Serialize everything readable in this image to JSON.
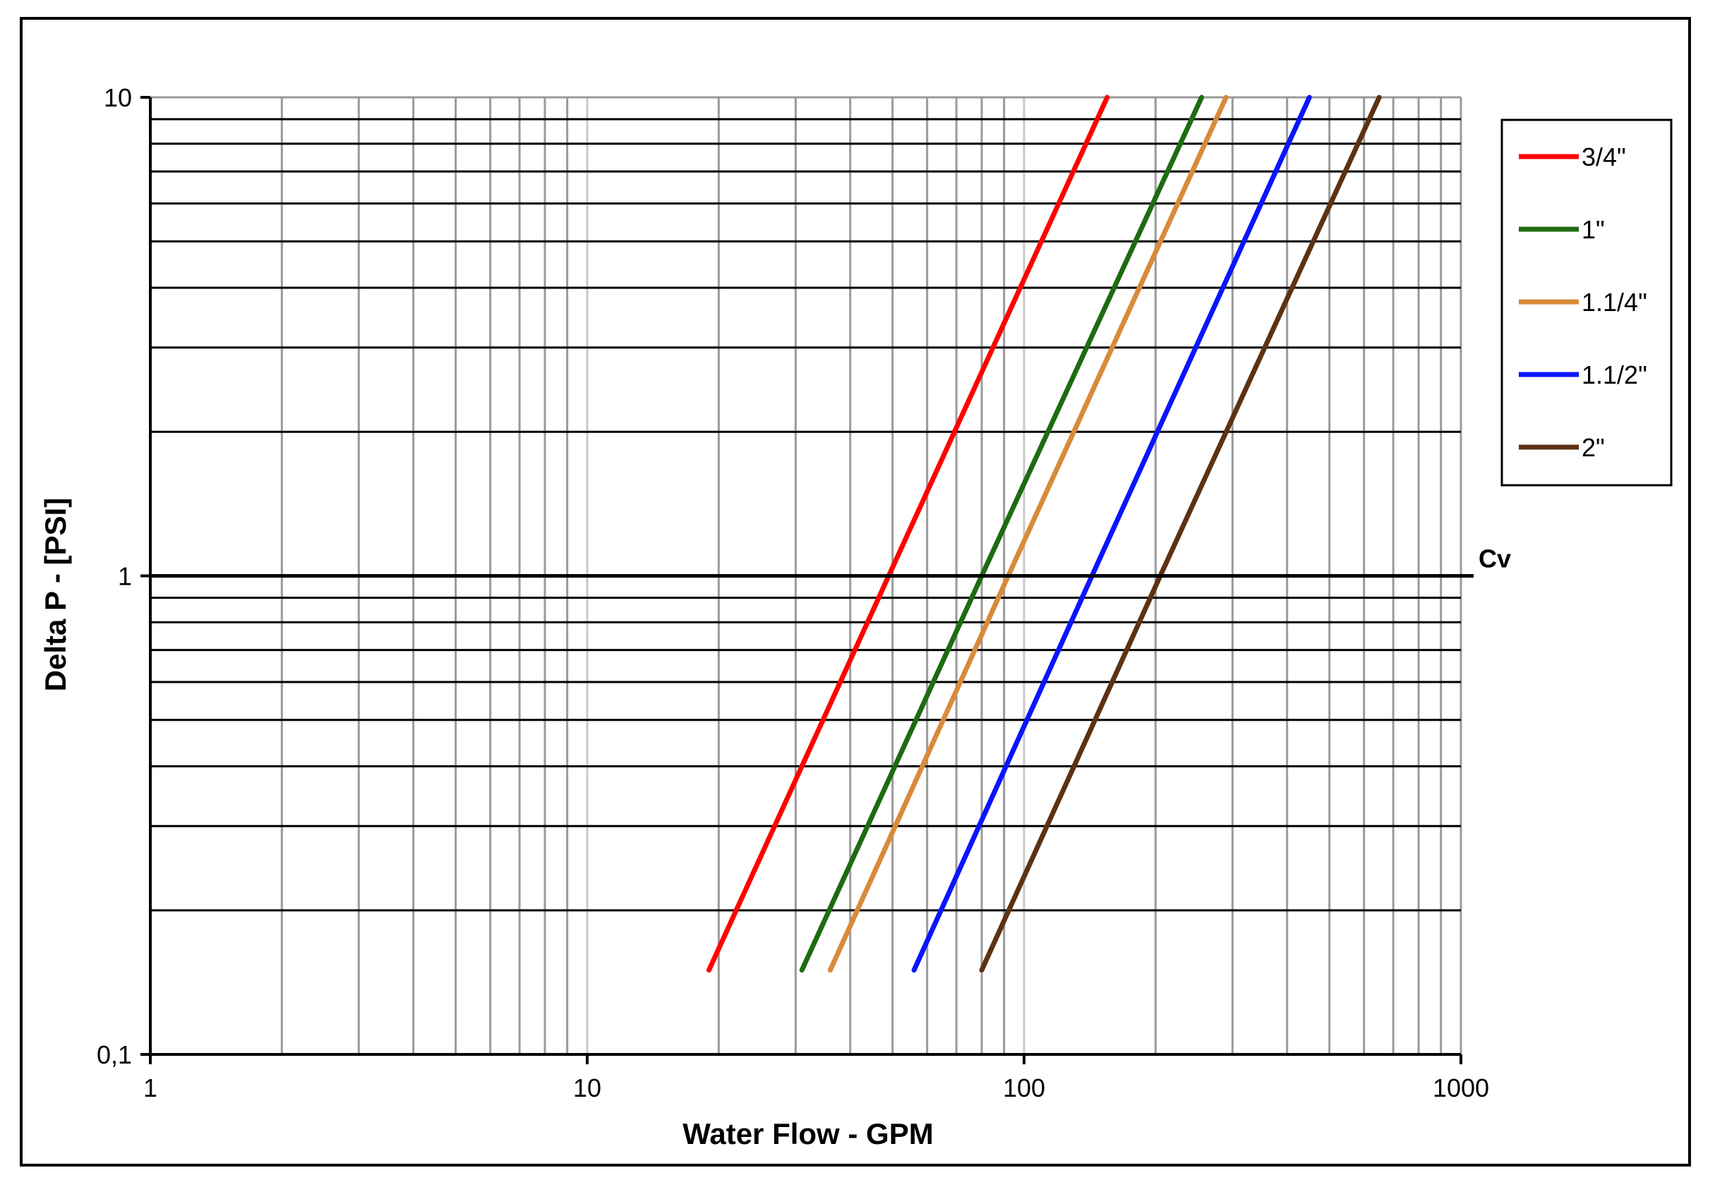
{
  "chart_data": {
    "type": "line",
    "xscale": "log",
    "yscale": "log",
    "xlim": [
      1,
      1000
    ],
    "ylim": [
      0.1,
      10
    ],
    "grid": true,
    "xlabel": "Water Flow  - GPM",
    "ylabel": "Delta P - [PSI]",
    "xticks": [
      "1",
      "10",
      "100",
      "1000"
    ],
    "yticks": [
      "0,1",
      "1",
      "10"
    ],
    "legend_position": "right",
    "reference_line": {
      "y": 1,
      "label": "Cv"
    },
    "series": [
      {
        "name": "3/4\"",
        "color": "#ff0000",
        "x": [
          19,
          49,
          155
        ],
        "y": [
          0.15,
          1,
          10
        ]
      },
      {
        "name": "1\"",
        "color": "#1e6b12",
        "x": [
          31,
          80,
          255
        ],
        "y": [
          0.15,
          1,
          10
        ]
      },
      {
        "name": "1.1/4\"",
        "color": "#d98a3a",
        "x": [
          36,
          92,
          290
        ],
        "y": [
          0.15,
          1,
          10
        ]
      },
      {
        "name": "1.1/2\"",
        "color": "#0a14ff",
        "x": [
          56,
          143,
          450
        ],
        "y": [
          0.15,
          1,
          10
        ]
      },
      {
        "name": "2\"",
        "color": "#5c3213",
        "x": [
          80,
          205,
          650
        ],
        "y": [
          0.15,
          1,
          10
        ]
      }
    ]
  }
}
